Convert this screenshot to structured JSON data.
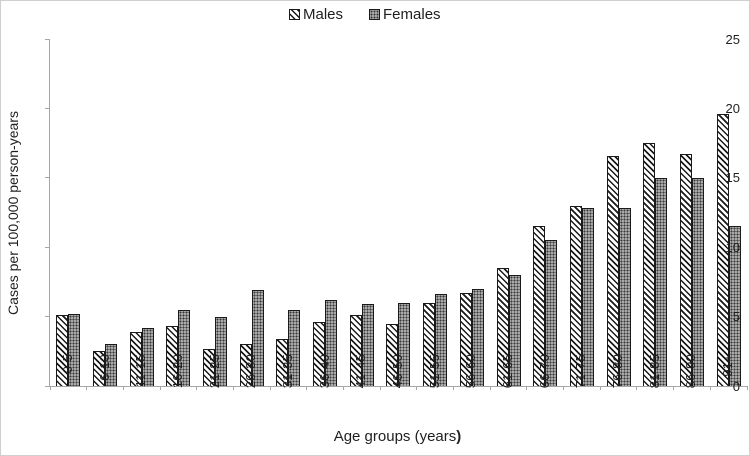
{
  "legend": {
    "items": [
      {
        "label": "Males",
        "swatch_icon": "diagonal-hatch-square"
      },
      {
        "label": "Females",
        "swatch_icon": "dotted-gray-square"
      }
    ]
  },
  "chart_data": {
    "type": "bar",
    "title": "",
    "categories": [
      "0-5",
      "6-10",
      "11-15",
      "16-20",
      "21-25",
      "26-30",
      "31-35",
      "36-40",
      "41-45",
      "46-50",
      "51-55",
      "56-60",
      "61-65",
      "66-70",
      "71-75",
      "76-80",
      "81-85",
      "86-90",
      "91+"
    ],
    "series": [
      {
        "name": "Males",
        "pattern": "diagonal-hatch",
        "values": [
          5.1,
          2.5,
          3.9,
          4.3,
          2.7,
          3.0,
          3.4,
          4.6,
          5.1,
          4.5,
          6.0,
          6.7,
          8.5,
          11.5,
          13.0,
          16.6,
          17.5,
          16.7,
          19.6
        ]
      },
      {
        "name": "Females",
        "pattern": "gray-dotted",
        "values": [
          5.2,
          3.0,
          4.2,
          5.5,
          5.0,
          6.9,
          5.5,
          6.2,
          5.9,
          6.0,
          6.6,
          7.0,
          8.0,
          10.5,
          12.8,
          12.8,
          15.0,
          15.0,
          11.5
        ]
      }
    ],
    "xlabel": "Age groups (years)",
    "xlabel_parts": {
      "regular": "Age groups (years",
      "bold": ")"
    },
    "ylabel": "Cases per 100,000 person-years",
    "ylim": [
      0,
      25
    ],
    "yticks": [
      0,
      5,
      10,
      15,
      20,
      25
    ],
    "grid": false,
    "legend_position": "top-center",
    "colors": {
      "bar_border": "#1a1a1a",
      "male_hatch": "#1a1a1a",
      "female_fill": "#a8a8a8",
      "female_dots": "#3a3a3a",
      "axis_line": "#a6a6a6",
      "text": "#1f1f1f"
    }
  }
}
